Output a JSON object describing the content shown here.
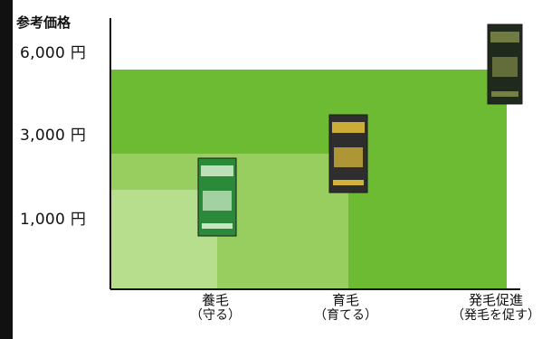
{
  "chart_data": {
    "type": "bar",
    "title": "",
    "ylabel": "参考価格",
    "xlabel": "",
    "yscale": "categorical-price-tiers",
    "y_ticks": [
      {
        "label": "1,000 円",
        "value": 1000
      },
      {
        "label": "3,000 円",
        "value": 3000
      },
      {
        "label": "6,000 円",
        "value": 6000
      }
    ],
    "categories": [
      {
        "label": "養毛",
        "sub": "（守る）"
      },
      {
        "label": "育毛",
        "sub": "（育てる）"
      },
      {
        "label": "発毛促進",
        "sub": "（発毛を促す）"
      }
    ],
    "values": [
      1000,
      2000,
      4500
    ],
    "grid": false,
    "legend": "none",
    "colors": {
      "tier1": "#b7de8c",
      "tier2": "#97ce5f",
      "tier3": "#6cbb33",
      "axis": "#111111",
      "left_strip": "#111111"
    },
    "products": [
      {
        "category": "養毛",
        "box_color": "#2a8a3a",
        "label_color": "#d8efcf"
      },
      {
        "category": "育毛",
        "box_color": "#2e2e2e",
        "label_color": "#e6c23a"
      },
      {
        "category": "発毛促進",
        "box_color": "#1f2a1c",
        "label_color": "#7f8a48"
      }
    ]
  }
}
